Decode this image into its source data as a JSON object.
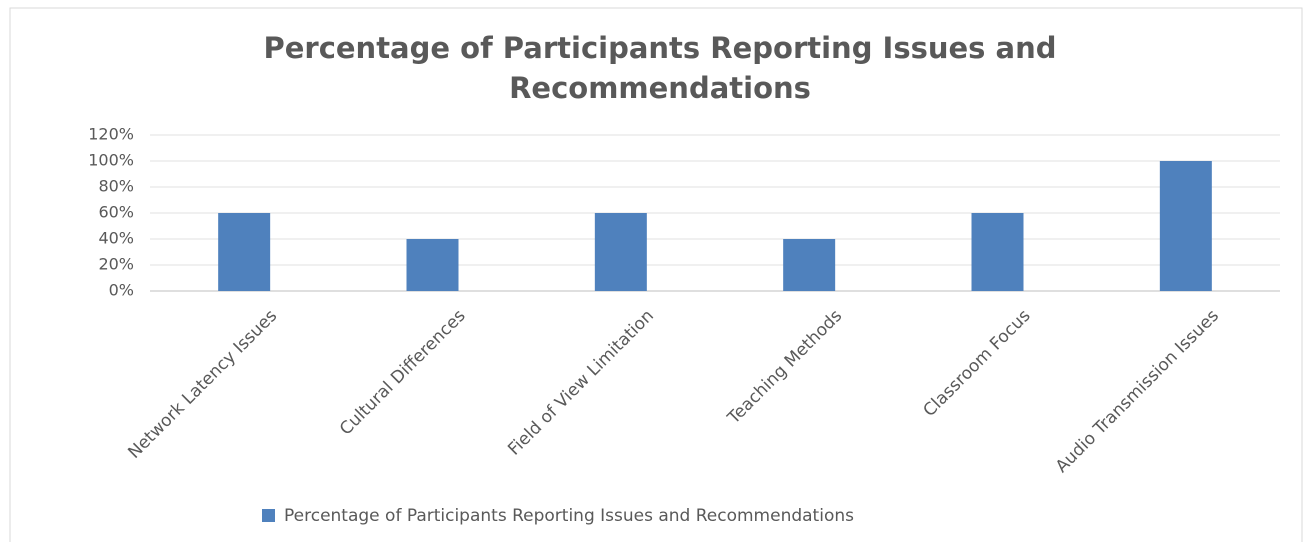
{
  "chart_data": {
    "type": "bar",
    "title": "Percentage of Participants Reporting Issues and Recommendations",
    "categories": [
      "Network Latency Issues",
      "Cultural Differences",
      "Field of View Limitation",
      "Teaching Methods",
      "Classroom Focus",
      "Audio Transmission Issues"
    ],
    "series": [
      {
        "name": "Percentage of Participants Reporting Issues and Recommendations",
        "color": "#4f81bd",
        "values": [
          60,
          40,
          60,
          40,
          60,
          100
        ]
      }
    ],
    "ylim": [
      0,
      120
    ],
    "yticks": [
      {
        "value": 0,
        "label": "0%"
      },
      {
        "value": 20,
        "label": "20%"
      },
      {
        "value": 40,
        "label": "40%"
      },
      {
        "value": 60,
        "label": "60%"
      },
      {
        "value": 80,
        "label": "80%"
      },
      {
        "value": 100,
        "label": "100%"
      },
      {
        "value": 120,
        "label": "120%"
      }
    ],
    "grid": true,
    "legend": "bottom"
  }
}
